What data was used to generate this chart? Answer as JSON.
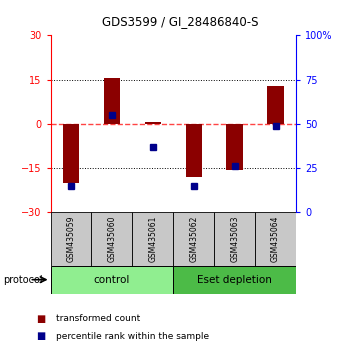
{
  "title": "GDS3599 / GI_28486840-S",
  "samples": [
    "GSM435059",
    "GSM435060",
    "GSM435061",
    "GSM435062",
    "GSM435063",
    "GSM435064"
  ],
  "red_values": [
    -20.0,
    15.5,
    0.8,
    -18.0,
    -15.5,
    13.0
  ],
  "blue_percentiles": [
    15,
    55,
    37,
    15,
    26,
    49
  ],
  "ylim_left": [
    -30,
    30
  ],
  "ylim_right": [
    0,
    100
  ],
  "yticks_left": [
    -30,
    -15,
    0,
    15,
    30
  ],
  "yticks_right": [
    0,
    25,
    50,
    75,
    100
  ],
  "groups": [
    {
      "label": "control",
      "samples": [
        0,
        1,
        2
      ],
      "color": "#90EE90"
    },
    {
      "label": "Eset depletion",
      "samples": [
        3,
        4,
        5
      ],
      "color": "#4CBB47"
    }
  ],
  "bar_color": "#8B0000",
  "dot_color": "#00008B",
  "zero_line_color": "#FF4444",
  "bg_color": "#FFFFFF",
  "tick_area_color": "#CCCCCC",
  "protocol_label": "protocol",
  "legend_red": "transformed count",
  "legend_blue": "percentile rank within the sample"
}
